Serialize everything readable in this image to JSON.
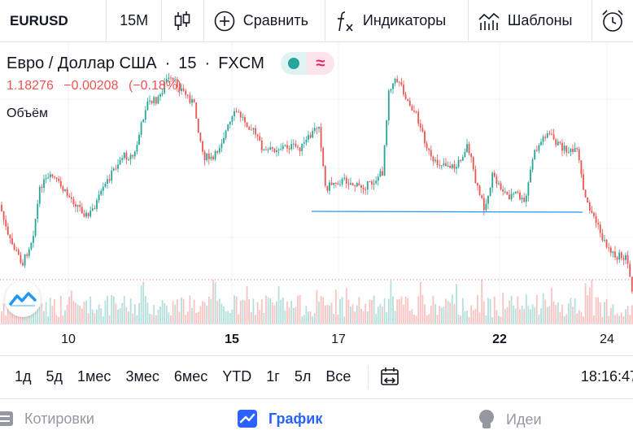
{
  "toolbar": {
    "symbol": "EURUSD",
    "interval": "15M",
    "compare_label": "Сравнить",
    "indicators_label": "Индикаторы",
    "templates_label": "Шаблоны"
  },
  "legend": {
    "instrument": "Евро / Доллар США",
    "interval": "15",
    "exchange": "FXCM",
    "price": "1.18276",
    "change": "−0.00208",
    "change_pct": "(−0.18%)",
    "volume_label": "Объём"
  },
  "chart_data": {
    "type": "candlestick",
    "x_ticks": [
      {
        "label": "10",
        "bold": false
      },
      {
        "label": "15",
        "bold": true
      },
      {
        "label": "17",
        "bold": false
      },
      {
        "label": "22",
        "bold": true
      },
      {
        "label": "24",
        "bold": false
      }
    ],
    "colors": {
      "up": "#26a69a",
      "down": "#ef5350",
      "trendline": "#2196f3",
      "grid": "#f0f3fa"
    },
    "y_range": [
      1.1795,
      1.1895
    ]
  },
  "ranges": [
    "1д",
    "5д",
    "1мес",
    "3мес",
    "6мес",
    "YTD",
    "1г",
    "5л",
    "Все"
  ],
  "time": "18:16:47",
  "bottom_nav": {
    "quotes": "Котировки",
    "chart": "График",
    "ideas": "Идеи"
  }
}
